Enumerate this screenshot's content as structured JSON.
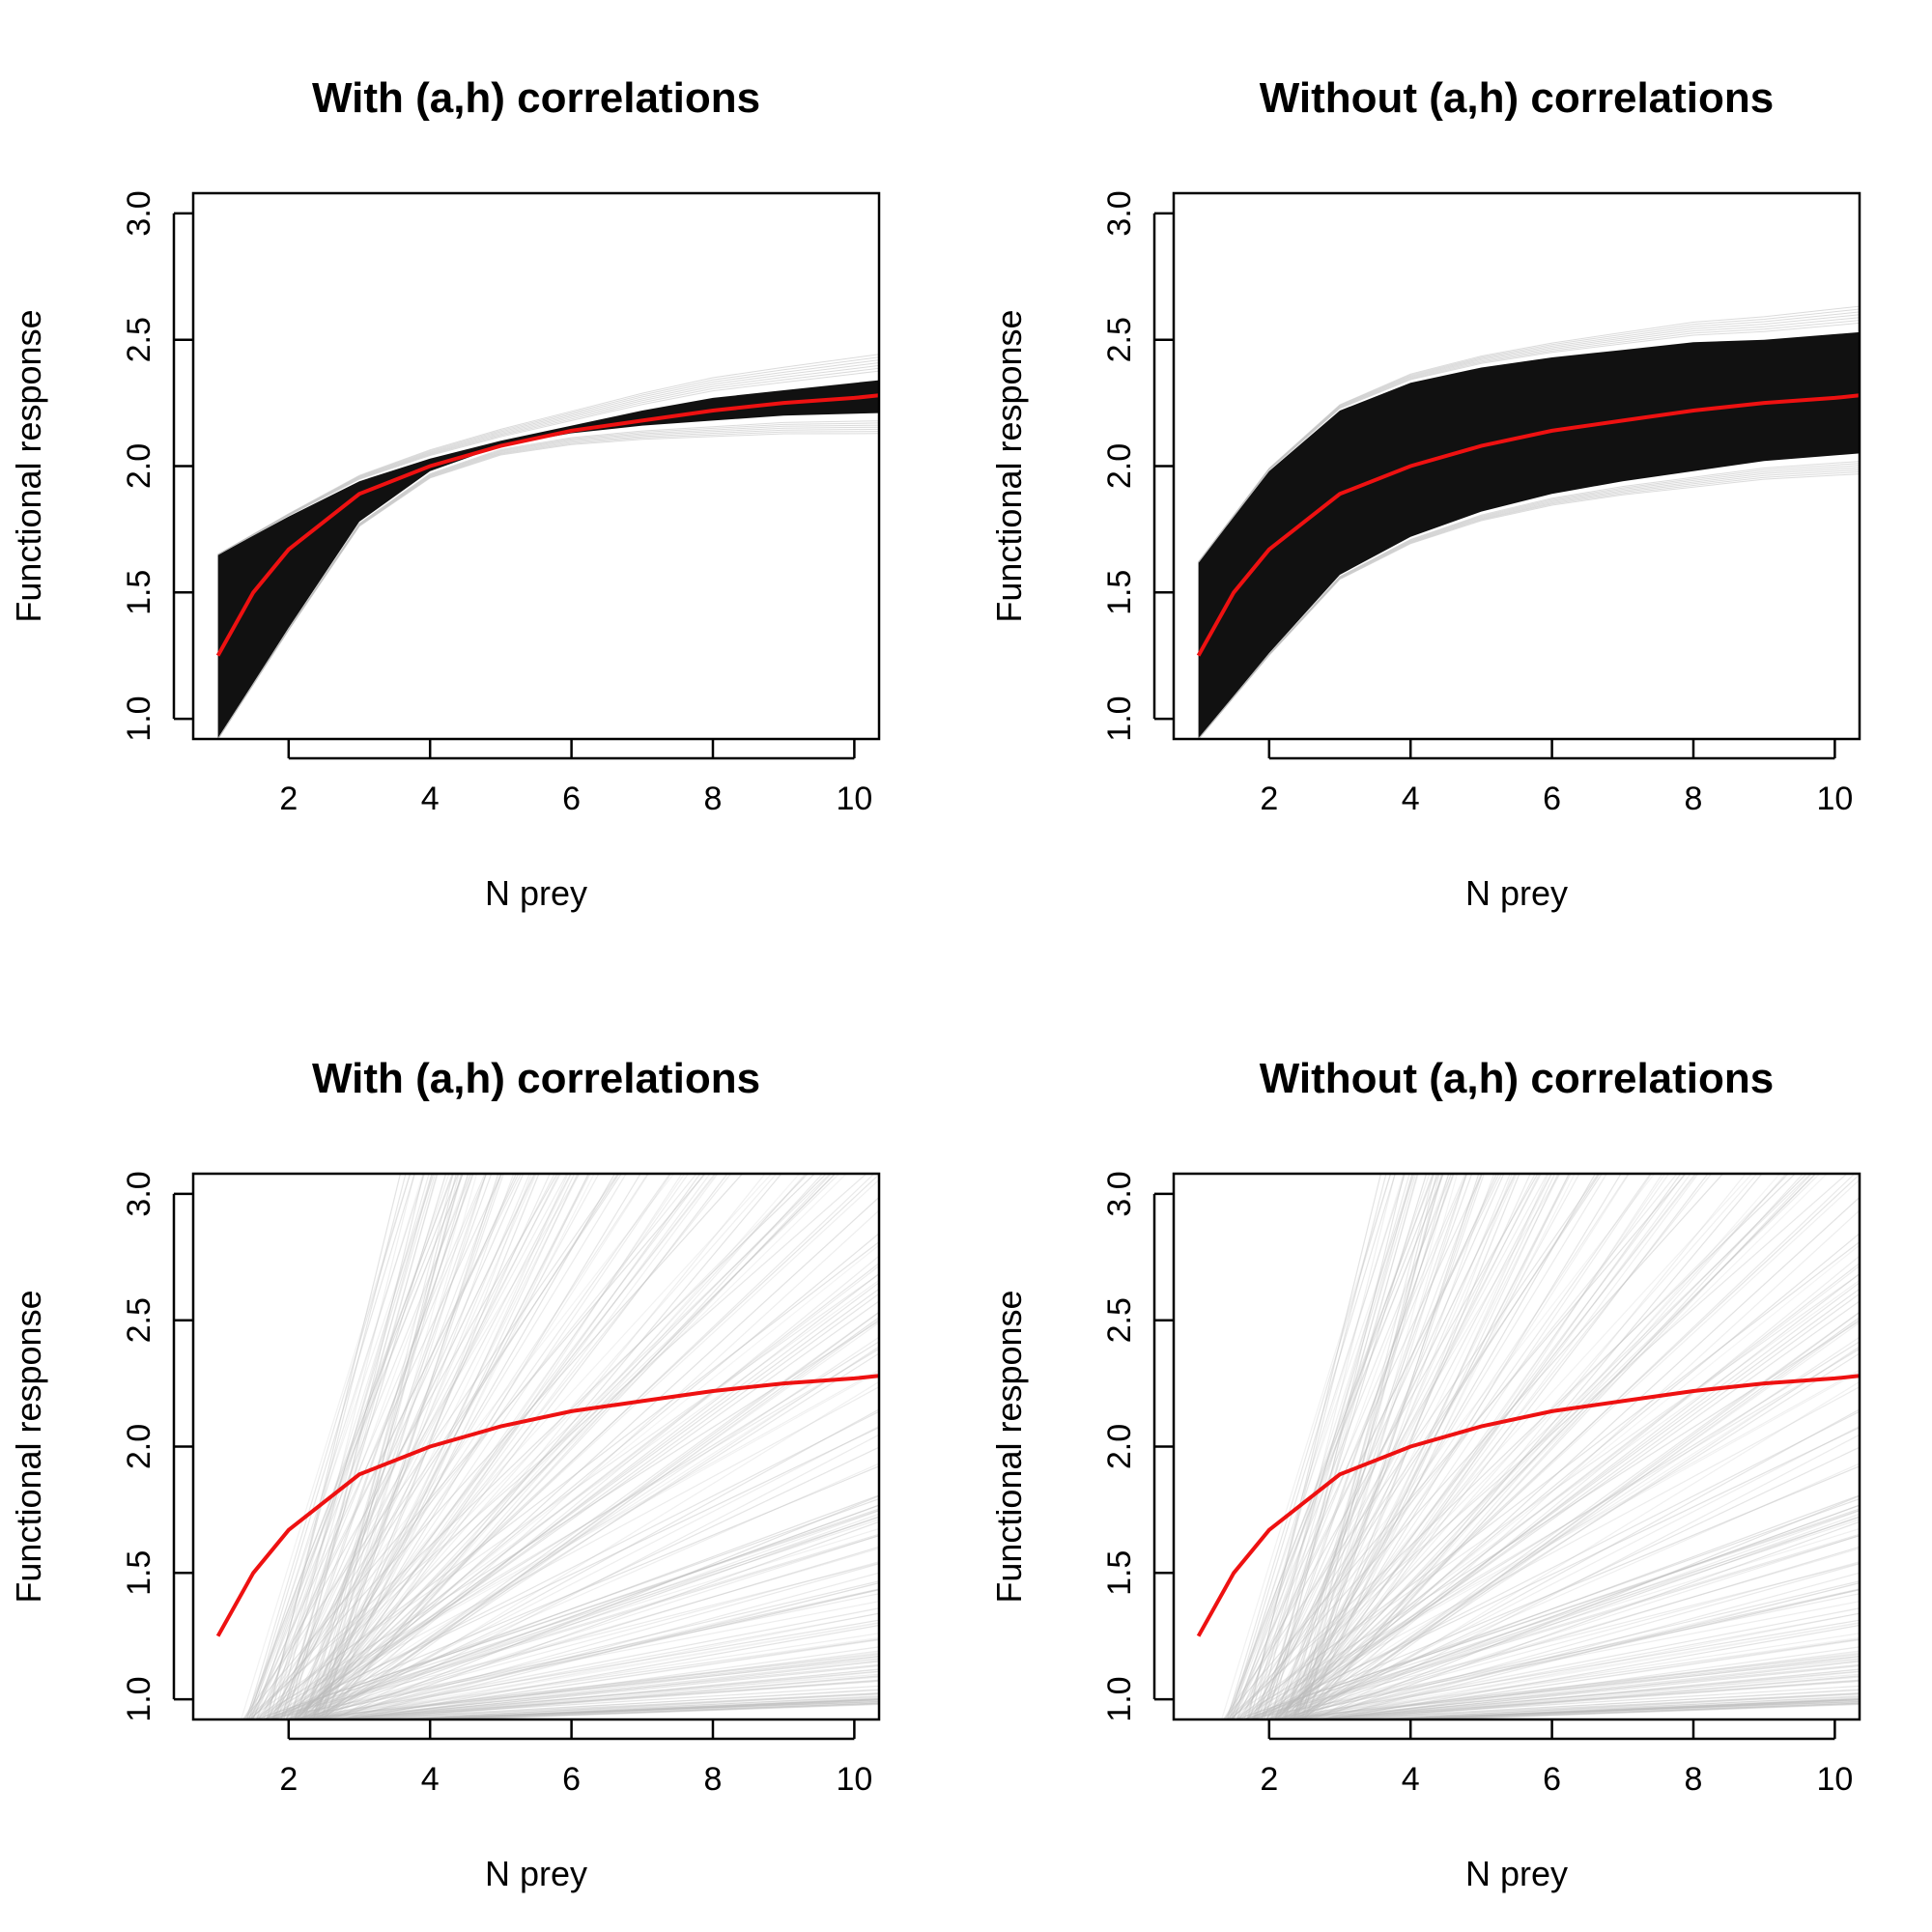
{
  "chart_data": [
    {
      "type": "line",
      "title": "With (a,h) correlations",
      "xlabel": "N prey",
      "ylabel": "Functional response",
      "xticks": [
        "2",
        "4",
        "6",
        "8",
        "10"
      ],
      "yticks": [
        "1.0",
        "1.5",
        "2.0",
        "2.5",
        "3.0"
      ],
      "xlim": [
        0.65,
        10.35
      ],
      "ylim": [
        0.92,
        3.08
      ],
      "band": {
        "x": [
          1,
          2,
          3,
          4,
          5,
          6,
          7,
          8,
          9,
          10.35
        ],
        "lower": [
          0.92,
          1.36,
          1.78,
          1.98,
          2.08,
          2.13,
          2.16,
          2.18,
          2.2,
          2.21
        ],
        "upper": [
          1.65,
          1.8,
          1.94,
          2.03,
          2.1,
          2.16,
          2.22,
          2.27,
          2.3,
          2.34
        ],
        "color": "#111111"
      },
      "series": [
        {
          "x": [
            1,
            1.5,
            2,
            3,
            4,
            5,
            6,
            7,
            8,
            9,
            10,
            10.35
          ],
          "values": [
            1.25,
            1.5,
            1.67,
            1.89,
            2.0,
            2.08,
            2.14,
            2.18,
            2.22,
            2.25,
            2.27,
            2.28
          ],
          "color": "#ee1111"
        }
      ]
    },
    {
      "type": "line",
      "title": "Without (a,h) correlations",
      "xlabel": "N prey",
      "ylabel": "Functional response",
      "xticks": [
        "2",
        "4",
        "6",
        "8",
        "10"
      ],
      "yticks": [
        "1.0",
        "1.5",
        "2.0",
        "2.5",
        "3.0"
      ],
      "xlim": [
        0.65,
        10.35
      ],
      "ylim": [
        0.92,
        3.08
      ],
      "band": {
        "x": [
          1,
          2,
          3,
          4,
          5,
          6,
          7,
          8,
          9,
          10.35
        ],
        "lower": [
          0.92,
          1.26,
          1.57,
          1.72,
          1.82,
          1.89,
          1.94,
          1.98,
          2.02,
          2.05
        ],
        "upper": [
          1.62,
          1.98,
          2.22,
          2.33,
          2.39,
          2.43,
          2.46,
          2.49,
          2.5,
          2.53
        ],
        "color": "#111111"
      },
      "series": [
        {
          "x": [
            1,
            1.5,
            2,
            3,
            4,
            5,
            6,
            7,
            8,
            9,
            10,
            10.35
          ],
          "values": [
            1.25,
            1.5,
            1.67,
            1.89,
            2.0,
            2.08,
            2.14,
            2.18,
            2.22,
            2.25,
            2.27,
            2.28
          ],
          "color": "#ee1111"
        }
      ]
    },
    {
      "type": "line",
      "title": "With (a,h) correlations",
      "xlabel": "N prey",
      "ylabel": "Functional response",
      "xticks": [
        "2",
        "4",
        "6",
        "8",
        "10"
      ],
      "yticks": [
        "1.0",
        "1.5",
        "2.0",
        "2.5",
        "3.0"
      ],
      "xlim": [
        0.65,
        10.35
      ],
      "ylim": [
        0.92,
        3.08
      ],
      "fan": {
        "color": "#bbbbbb"
      },
      "series": [
        {
          "x": [
            1,
            1.5,
            2,
            3,
            4,
            5,
            6,
            7,
            8,
            9,
            10,
            10.35
          ],
          "values": [
            1.25,
            1.5,
            1.67,
            1.89,
            2.0,
            2.08,
            2.14,
            2.18,
            2.22,
            2.25,
            2.27,
            2.28
          ],
          "color": "#ee1111"
        }
      ]
    },
    {
      "type": "line",
      "title": "Without (a,h) correlations",
      "xlabel": "N prey",
      "ylabel": "Functional response",
      "xticks": [
        "2",
        "4",
        "6",
        "8",
        "10"
      ],
      "yticks": [
        "1.0",
        "1.5",
        "2.0",
        "2.5",
        "3.0"
      ],
      "xlim": [
        0.65,
        10.35
      ],
      "ylim": [
        0.92,
        3.08
      ],
      "fan": {
        "color": "#bbbbbb"
      },
      "series": [
        {
          "x": [
            1,
            1.5,
            2,
            3,
            4,
            5,
            6,
            7,
            8,
            9,
            10,
            10.35
          ],
          "values": [
            1.25,
            1.5,
            1.67,
            1.89,
            2.0,
            2.08,
            2.14,
            2.18,
            2.22,
            2.25,
            2.27,
            2.28
          ],
          "color": "#ee1111"
        }
      ]
    }
  ]
}
